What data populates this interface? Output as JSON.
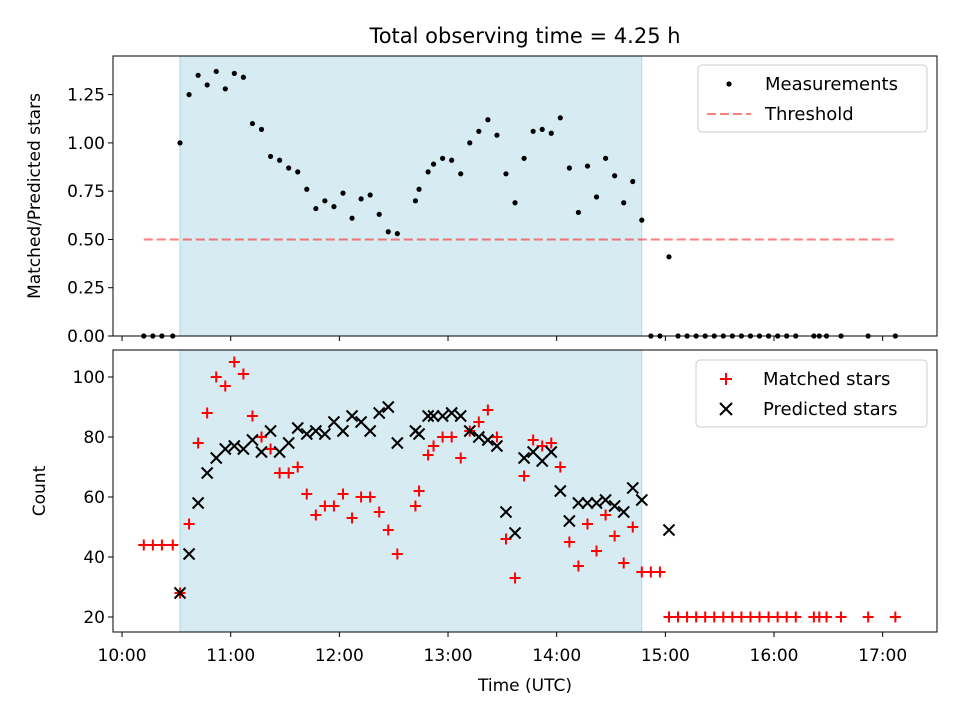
{
  "chart_data": [
    {
      "type": "scatter",
      "title": "Total observing time = 4.25 h",
      "xlabel": "",
      "ylabel": "Matched/Predicted stars",
      "ylim": [
        0,
        1.45
      ],
      "xlim": [
        "09:55",
        "17:30"
      ],
      "yticks": [
        0.0,
        0.25,
        0.5,
        0.75,
        1.0,
        1.25
      ],
      "ytick_labels": [
        "0.00",
        "0.25",
        "0.50",
        "0.75",
        "1.00",
        "1.25"
      ],
      "shaded_region": {
        "start": "10:32",
        "end": "14:47",
        "color": "#add8e6"
      },
      "legend_position": "top-right",
      "series": [
        {
          "name": "Measurements",
          "marker": "dot",
          "color": "#000000",
          "points": [
            [
              "10:12",
              0
            ],
            [
              "10:17",
              0
            ],
            [
              "10:22",
              0
            ],
            [
              "10:28",
              0
            ],
            [
              "10:32",
              1.0
            ],
            [
              "10:37",
              1.25
            ],
            [
              "10:42",
              1.35
            ],
            [
              "10:47",
              1.3
            ],
            [
              "10:52",
              1.37
            ],
            [
              "10:57",
              1.28
            ],
            [
              "11:02",
              1.36
            ],
            [
              "11:07",
              1.34
            ],
            [
              "11:12",
              1.1
            ],
            [
              "11:17",
              1.07
            ],
            [
              "11:22",
              0.93
            ],
            [
              "11:27",
              0.91
            ],
            [
              "11:32",
              0.87
            ],
            [
              "11:37",
              0.85
            ],
            [
              "11:42",
              0.76
            ],
            [
              "11:47",
              0.66
            ],
            [
              "11:52",
              0.7
            ],
            [
              "11:57",
              0.67
            ],
            [
              "12:02",
              0.74
            ],
            [
              "12:07",
              0.61
            ],
            [
              "12:12",
              0.71
            ],
            [
              "12:17",
              0.73
            ],
            [
              "12:22",
              0.63
            ],
            [
              "12:27",
              0.54
            ],
            [
              "12:32",
              0.53
            ],
            [
              "12:42",
              0.7
            ],
            [
              "12:44",
              0.76
            ],
            [
              "12:49",
              0.85
            ],
            [
              "12:52",
              0.89
            ],
            [
              "12:57",
              0.92
            ],
            [
              "13:02",
              0.91
            ],
            [
              "13:07",
              0.84
            ],
            [
              "13:12",
              1.0
            ],
            [
              "13:17",
              1.06
            ],
            [
              "13:22",
              1.12
            ],
            [
              "13:27",
              1.04
            ],
            [
              "13:32",
              0.84
            ],
            [
              "13:37",
              0.69
            ],
            [
              "13:42",
              0.92
            ],
            [
              "13:47",
              1.06
            ],
            [
              "13:52",
              1.07
            ],
            [
              "13:57",
              1.05
            ],
            [
              "14:02",
              1.13
            ],
            [
              "14:07",
              0.87
            ],
            [
              "14:12",
              0.64
            ],
            [
              "14:17",
              0.88
            ],
            [
              "14:22",
              0.72
            ],
            [
              "14:27",
              0.92
            ],
            [
              "14:32",
              0.83
            ],
            [
              "14:37",
              0.69
            ],
            [
              "14:42",
              0.8
            ],
            [
              "14:47",
              0.6
            ],
            [
              "14:52",
              0
            ],
            [
              "14:57",
              0
            ],
            [
              "15:02",
              0.41
            ],
            [
              "15:07",
              0
            ],
            [
              "15:12",
              0
            ],
            [
              "15:17",
              0
            ],
            [
              "15:22",
              0
            ],
            [
              "15:27",
              0
            ],
            [
              "15:32",
              0
            ],
            [
              "15:37",
              0
            ],
            [
              "15:42",
              0
            ],
            [
              "15:47",
              0
            ],
            [
              "15:52",
              0
            ],
            [
              "15:57",
              0
            ],
            [
              "16:02",
              0
            ],
            [
              "16:07",
              0
            ],
            [
              "16:12",
              0
            ],
            [
              "16:22",
              0
            ],
            [
              "16:25",
              0
            ],
            [
              "16:29",
              0
            ],
            [
              "16:37",
              0
            ],
            [
              "16:52",
              0
            ],
            [
              "17:07",
              0
            ]
          ]
        },
        {
          "name": "Threshold",
          "marker": "dashed-line",
          "color": "#ff0000",
          "alpha": 0.5,
          "points": [
            [
              "10:12",
              0.5
            ],
            [
              "17:07",
              0.5
            ]
          ]
        }
      ]
    },
    {
      "type": "scatter",
      "title": "",
      "xlabel": "Time (UTC)",
      "ylabel": "Count",
      "ylim": [
        15,
        109
      ],
      "xlim": [
        "09:55",
        "17:30"
      ],
      "yticks": [
        20,
        40,
        60,
        80,
        100
      ],
      "xticks": [
        "10:00",
        "11:00",
        "12:00",
        "13:00",
        "14:00",
        "15:00",
        "16:00",
        "17:00"
      ],
      "shaded_region": {
        "start": "10:32",
        "end": "14:47",
        "color": "#add8e6"
      },
      "legend_position": "top-right",
      "series": [
        {
          "name": "Matched stars",
          "marker": "plus",
          "color": "#ff0000",
          "points": [
            [
              "10:12",
              44
            ],
            [
              "10:17",
              44
            ],
            [
              "10:22",
              44
            ],
            [
              "10:28",
              44
            ],
            [
              "10:32",
              28
            ],
            [
              "10:37",
              51
            ],
            [
              "10:42",
              78
            ],
            [
              "10:47",
              88
            ],
            [
              "10:52",
              100
            ],
            [
              "10:57",
              97
            ],
            [
              "11:02",
              105
            ],
            [
              "11:07",
              101
            ],
            [
              "11:12",
              87
            ],
            [
              "11:17",
              80
            ],
            [
              "11:22",
              76
            ],
            [
              "11:27",
              68
            ],
            [
              "11:32",
              68
            ],
            [
              "11:37",
              70
            ],
            [
              "11:42",
              61
            ],
            [
              "11:47",
              54
            ],
            [
              "11:52",
              57
            ],
            [
              "11:57",
              57
            ],
            [
              "12:02",
              61
            ],
            [
              "12:07",
              53
            ],
            [
              "12:12",
              60
            ],
            [
              "12:17",
              60
            ],
            [
              "12:22",
              55
            ],
            [
              "12:27",
              49
            ],
            [
              "12:32",
              41
            ],
            [
              "12:42",
              57
            ],
            [
              "12:44",
              62
            ],
            [
              "12:49",
              74
            ],
            [
              "12:52",
              77
            ],
            [
              "12:57",
              80
            ],
            [
              "13:02",
              80
            ],
            [
              "13:07",
              73
            ],
            [
              "13:12",
              82
            ],
            [
              "13:17",
              85
            ],
            [
              "13:22",
              89
            ],
            [
              "13:27",
              80
            ],
            [
              "13:32",
              46
            ],
            [
              "13:37",
              33
            ],
            [
              "13:42",
              67
            ],
            [
              "13:47",
              79
            ],
            [
              "13:52",
              77
            ],
            [
              "13:57",
              78
            ],
            [
              "14:02",
              70
            ],
            [
              "14:07",
              45
            ],
            [
              "14:12",
              37
            ],
            [
              "14:17",
              51
            ],
            [
              "14:22",
              42
            ],
            [
              "14:27",
              54
            ],
            [
              "14:32",
              47
            ],
            [
              "14:37",
              38
            ],
            [
              "14:42",
              50
            ],
            [
              "14:47",
              35
            ],
            [
              "14:52",
              35
            ],
            [
              "14:57",
              35
            ],
            [
              "15:02",
              20
            ],
            [
              "15:07",
              20
            ],
            [
              "15:12",
              20
            ],
            [
              "15:17",
              20
            ],
            [
              "15:22",
              20
            ],
            [
              "15:27",
              20
            ],
            [
              "15:32",
              20
            ],
            [
              "15:37",
              20
            ],
            [
              "15:42",
              20
            ],
            [
              "15:47",
              20
            ],
            [
              "15:52",
              20
            ],
            [
              "15:57",
              20
            ],
            [
              "16:02",
              20
            ],
            [
              "16:07",
              20
            ],
            [
              "16:12",
              20
            ],
            [
              "16:22",
              20
            ],
            [
              "16:25",
              20
            ],
            [
              "16:29",
              20
            ],
            [
              "16:37",
              20
            ],
            [
              "16:52",
              20
            ],
            [
              "17:07",
              20
            ]
          ]
        },
        {
          "name": "Predicted stars",
          "marker": "x",
          "color": "#000000",
          "points": [
            [
              "10:32",
              28
            ],
            [
              "10:37",
              41
            ],
            [
              "10:42",
              58
            ],
            [
              "10:47",
              68
            ],
            [
              "10:52",
              73
            ],
            [
              "10:57",
              76
            ],
            [
              "11:02",
              77
            ],
            [
              "11:07",
              76
            ],
            [
              "11:12",
              79
            ],
            [
              "11:17",
              75
            ],
            [
              "11:22",
              82
            ],
            [
              "11:27",
              75
            ],
            [
              "11:32",
              78
            ],
            [
              "11:37",
              83
            ],
            [
              "11:42",
              81
            ],
            [
              "11:47",
              82
            ],
            [
              "11:52",
              81
            ],
            [
              "11:57",
              85
            ],
            [
              "12:02",
              82
            ],
            [
              "12:07",
              87
            ],
            [
              "12:12",
              85
            ],
            [
              "12:17",
              82
            ],
            [
              "12:22",
              88
            ],
            [
              "12:27",
              90
            ],
            [
              "12:32",
              78
            ],
            [
              "12:42",
              82
            ],
            [
              "12:44",
              81
            ],
            [
              "12:49",
              87
            ],
            [
              "12:52",
              87
            ],
            [
              "12:57",
              87
            ],
            [
              "13:02",
              88
            ],
            [
              "13:07",
              87
            ],
            [
              "13:12",
              82
            ],
            [
              "13:17",
              80
            ],
            [
              "13:22",
              79
            ],
            [
              "13:27",
              77
            ],
            [
              "13:32",
              55
            ],
            [
              "13:37",
              48
            ],
            [
              "13:42",
              73
            ],
            [
              "13:47",
              75
            ],
            [
              "13:52",
              72
            ],
            [
              "13:57",
              75
            ],
            [
              "14:02",
              62
            ],
            [
              "14:07",
              52
            ],
            [
              "14:12",
              58
            ],
            [
              "14:17",
              58
            ],
            [
              "14:22",
              58
            ],
            [
              "14:27",
              59
            ],
            [
              "14:32",
              57
            ],
            [
              "14:37",
              55
            ],
            [
              "14:42",
              63
            ],
            [
              "14:47",
              59
            ],
            [
              "15:02",
              49
            ]
          ]
        }
      ]
    }
  ]
}
